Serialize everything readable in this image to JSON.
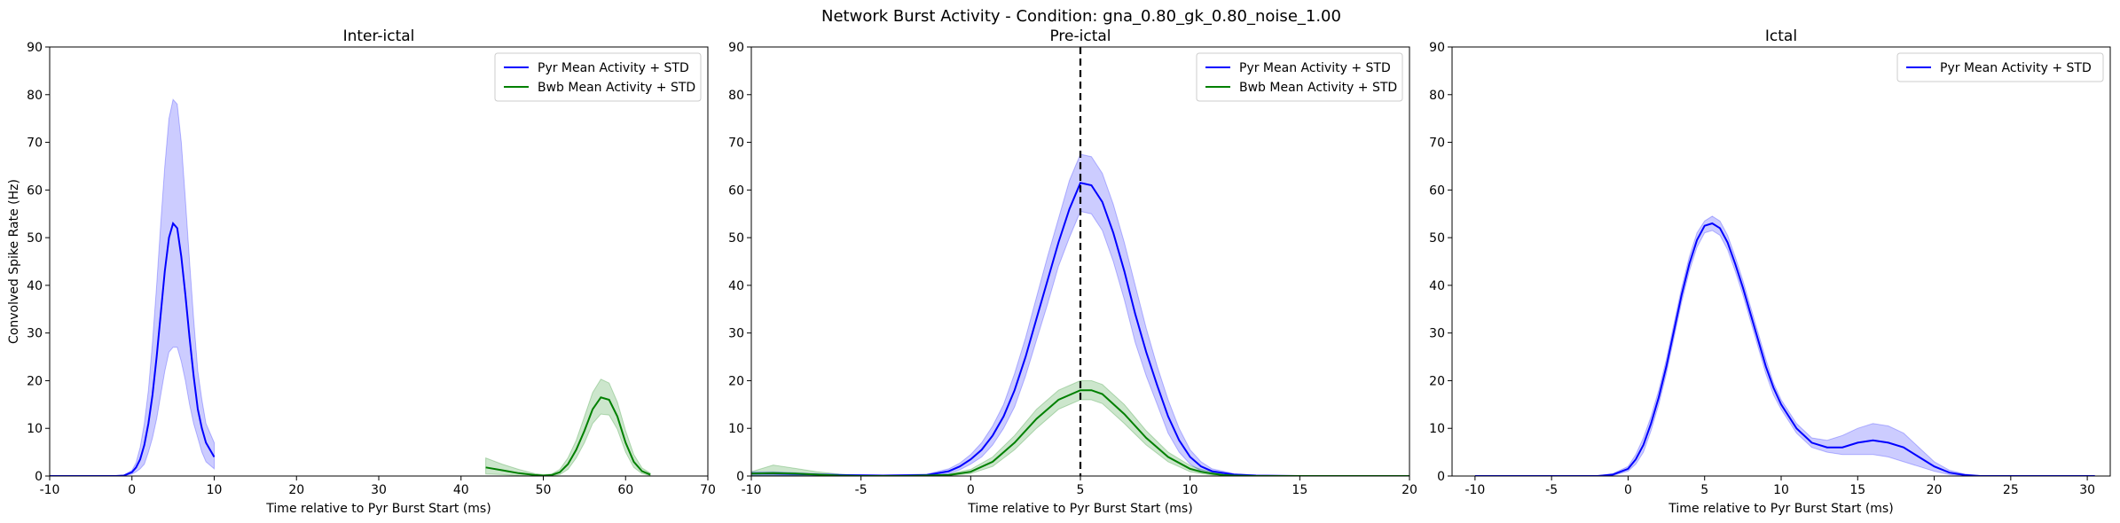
{
  "figure_title": "Network Burst Activity - Condition: gna_0.80_gk_0.80_noise_1.00",
  "colors": {
    "pyr": "#0000ff",
    "pyr_band": "#0000ff",
    "bwb": "#008000",
    "bwb_band": "#008000",
    "axis": "#000000"
  },
  "chart_data": [
    {
      "type": "line",
      "title": "Inter-ictal",
      "xlabel": "Time relative to Pyr Burst Start (ms)",
      "ylabel": "Convolved Spike Rate (Hz)",
      "xlim": [
        -10,
        70
      ],
      "ylim": [
        0,
        90
      ],
      "xticks": [
        -10,
        0,
        10,
        20,
        30,
        40,
        50,
        60,
        70
      ],
      "yticks": [
        0,
        10,
        20,
        30,
        40,
        50,
        60,
        70,
        80,
        90
      ],
      "legend_position": "top-right",
      "series": [
        {
          "name": "Pyr Mean Activity + STD",
          "color_key": "pyr",
          "x": [
            -10,
            -2,
            -1,
            0,
            0.5,
            1,
            1.5,
            2,
            2.5,
            3,
            3.5,
            4,
            4.5,
            5,
            5.5,
            6,
            6.5,
            7,
            7.5,
            8,
            8.5,
            9,
            10
          ],
          "mean": [
            0,
            0,
            0.1,
            0.8,
            1.8,
            3.5,
            6.5,
            11,
            17,
            25,
            34,
            43,
            50,
            53,
            52,
            46,
            38,
            29,
            21,
            14,
            10,
            7,
            4
          ],
          "upper": [
            0,
            0,
            0.2,
            1.2,
            2.8,
            6,
            11,
            18,
            28,
            40,
            53,
            65,
            75,
            79,
            78,
            70,
            58,
            45,
            33,
            22,
            16,
            11,
            7
          ],
          "lower": [
            0,
            0,
            0.05,
            0.4,
            0.9,
            1.5,
            2.5,
            5,
            8,
            12,
            17,
            22,
            26,
            27,
            27,
            24,
            20,
            15,
            11,
            8,
            5,
            3,
            1.5
          ]
        },
        {
          "name": "Bwb Mean Activity + STD",
          "color_key": "bwb",
          "x": [
            43,
            45,
            47,
            49,
            50,
            51,
            52,
            53,
            54,
            55,
            56,
            57,
            58,
            59,
            60,
            61,
            62,
            63
          ],
          "mean": [
            1.8,
            1.2,
            0.6,
            0.2,
            0.1,
            0.2,
            0.8,
            2.5,
            5.5,
            9.5,
            14,
            16.5,
            16,
            12.5,
            7,
            3,
            1,
            0.3
          ],
          "upper": [
            3.8,
            2.5,
            1.4,
            0.5,
            0.3,
            0.4,
            1.4,
            3.8,
            7.5,
            12.5,
            17.5,
            20.3,
            19.5,
            15.5,
            9.5,
            4.5,
            1.7,
            0.6
          ],
          "lower": [
            0.4,
            0.3,
            0.1,
            0,
            0,
            0.05,
            0.3,
            1.4,
            3.8,
            7,
            11,
            13,
            12.8,
            9.8,
            5,
            1.8,
            0.5,
            0.1
          ]
        }
      ],
      "vlines": []
    },
    {
      "type": "line",
      "title": "Pre-ictal",
      "xlabel": "Time relative to Pyr Burst Start (ms)",
      "ylabel": "",
      "xlim": [
        -10,
        20
      ],
      "ylim": [
        0,
        90
      ],
      "xticks": [
        -10,
        -5,
        0,
        5,
        10,
        15,
        20
      ],
      "yticks": [
        0,
        10,
        20,
        30,
        40,
        50,
        60,
        70,
        80,
        90
      ],
      "legend_position": "top-right",
      "series": [
        {
          "name": "Pyr Mean Activity + STD",
          "color_key": "pyr",
          "x": [
            -10,
            -9,
            -8,
            -6,
            -4,
            -2,
            -1,
            -0.5,
            0,
            0.5,
            1,
            1.5,
            2,
            2.5,
            3,
            3.5,
            4,
            4.5,
            5,
            5.5,
            6,
            6.5,
            7,
            7.5,
            8,
            8.5,
            9,
            9.5,
            10,
            10.5,
            11,
            12,
            13,
            15,
            20
          ],
          "mean": [
            0.5,
            0.5,
            0.4,
            0.2,
            0.1,
            0.2,
            1,
            2,
            3.5,
            5.5,
            8.5,
            12.5,
            18,
            25,
            33,
            41,
            49,
            56,
            61.5,
            61,
            57.5,
            51,
            43,
            34,
            26,
            19,
            12.5,
            7.5,
            4,
            2,
            1,
            0.3,
            0.1,
            0,
            0
          ],
          "upper": [
            0.9,
            0.9,
            0.7,
            0.3,
            0.2,
            0.4,
            1.5,
            2.7,
            4.5,
            7,
            10.5,
            15,
            21.5,
            29,
            37.5,
            46,
            54,
            62,
            67.5,
            67,
            63.5,
            57,
            49,
            40,
            31,
            23,
            16,
            10,
            5.5,
            3,
            1.5,
            0.5,
            0.2,
            0,
            0
          ],
          "lower": [
            0.1,
            0.1,
            0.1,
            0.05,
            0,
            0.05,
            0.5,
            1.3,
            2.5,
            4,
            6.5,
            10,
            14.5,
            21,
            28.5,
            36,
            44,
            50,
            55.5,
            55,
            51.5,
            45,
            37,
            28,
            21,
            15,
            9,
            5,
            2.5,
            1,
            0.5,
            0.1,
            0,
            0,
            0
          ]
        },
        {
          "name": "Bwb Mean Activity + STD",
          "color_key": "bwb",
          "x": [
            -10,
            -9,
            -8,
            -7,
            -6,
            -5,
            -3,
            -1,
            0,
            1,
            2,
            3,
            4,
            5,
            5.5,
            6,
            7,
            8,
            9,
            10,
            10.5,
            11,
            11.5,
            12,
            13,
            15,
            20
          ],
          "mean": [
            0.5,
            0.6,
            0.5,
            0.3,
            0.1,
            0,
            0,
            0.2,
            0.9,
            3,
            7,
            12,
            16,
            18,
            18,
            17.2,
            13,
            8,
            4,
            1.5,
            0.9,
            0.5,
            0.2,
            0.1,
            0,
            0,
            0
          ],
          "upper": [
            0.9,
            2.3,
            1.6,
            0.9,
            0.4,
            0.1,
            0.1,
            0.4,
            1.4,
            4,
            8.5,
            14,
            18,
            20,
            20,
            19.2,
            15,
            9.5,
            5,
            2.2,
            1.4,
            0.8,
            0.4,
            0.2,
            0,
            0,
            0
          ],
          "lower": [
            0.1,
            0.1,
            0.1,
            0.05,
            0,
            0,
            0,
            0.05,
            0.5,
            2,
            5.5,
            10,
            14,
            16,
            16,
            15.2,
            11,
            6.5,
            3,
            0.9,
            0.5,
            0.2,
            0.1,
            0,
            0,
            0,
            0
          ]
        }
      ],
      "vlines": [
        5
      ]
    },
    {
      "type": "line",
      "title": "Ictal",
      "xlabel": "Time relative to Pyr Burst Start (ms)",
      "ylabel": "",
      "xlim": [
        -11.5,
        31.5
      ],
      "ylim": [
        0,
        90
      ],
      "xticks": [
        -10,
        -5,
        0,
        5,
        10,
        15,
        20,
        25,
        30
      ],
      "yticks": [
        0,
        10,
        20,
        30,
        40,
        50,
        60,
        70,
        80,
        90
      ],
      "legend_position": "top-right",
      "series": [
        {
          "name": "Pyr Mean Activity + STD",
          "color_key": "pyr",
          "x": [
            -10,
            -2,
            -1,
            0,
            0.5,
            1,
            1.5,
            2,
            2.5,
            3,
            3.5,
            4,
            4.5,
            5,
            5.5,
            6,
            6.5,
            7,
            7.5,
            8,
            8.5,
            9,
            9.5,
            10,
            11,
            12,
            13,
            14,
            15,
            16,
            17,
            18,
            19,
            20,
            21,
            22,
            23,
            25,
            30.5
          ],
          "mean": [
            0,
            0,
            0.3,
            1.5,
            3.5,
            6.5,
            11,
            16.5,
            23,
            30.5,
            38,
            44.5,
            49.5,
            52.5,
            53,
            52,
            49,
            44.5,
            39.5,
            34,
            28.5,
            23,
            18.5,
            15,
            10,
            7,
            6,
            6,
            7,
            7.5,
            7,
            6,
            4,
            2,
            0.7,
            0.2,
            0,
            0,
            0
          ],
          "upper": [
            0,
            0,
            0.5,
            2,
            4.5,
            8,
            12.5,
            18,
            24.5,
            32,
            39.5,
            46,
            51,
            53.5,
            54.5,
            53.5,
            50.5,
            46,
            41,
            35.5,
            30,
            24.5,
            19.5,
            16,
            11,
            8,
            7.5,
            8.5,
            10,
            11,
            10.5,
            9,
            6,
            3,
            1.2,
            0.4,
            0.1,
            0,
            0
          ],
          "lower": [
            0,
            0,
            0.1,
            1,
            2.5,
            5,
            9.5,
            15,
            21.5,
            29,
            36.5,
            43,
            48,
            51,
            51.5,
            50.5,
            47.5,
            43,
            38,
            32.5,
            27,
            21.5,
            17,
            14,
            9,
            6,
            5,
            4.5,
            4.5,
            4.5,
            4,
            3,
            2,
            1,
            0.3,
            0.1,
            0,
            0,
            0
          ]
        }
      ],
      "vlines": []
    }
  ]
}
